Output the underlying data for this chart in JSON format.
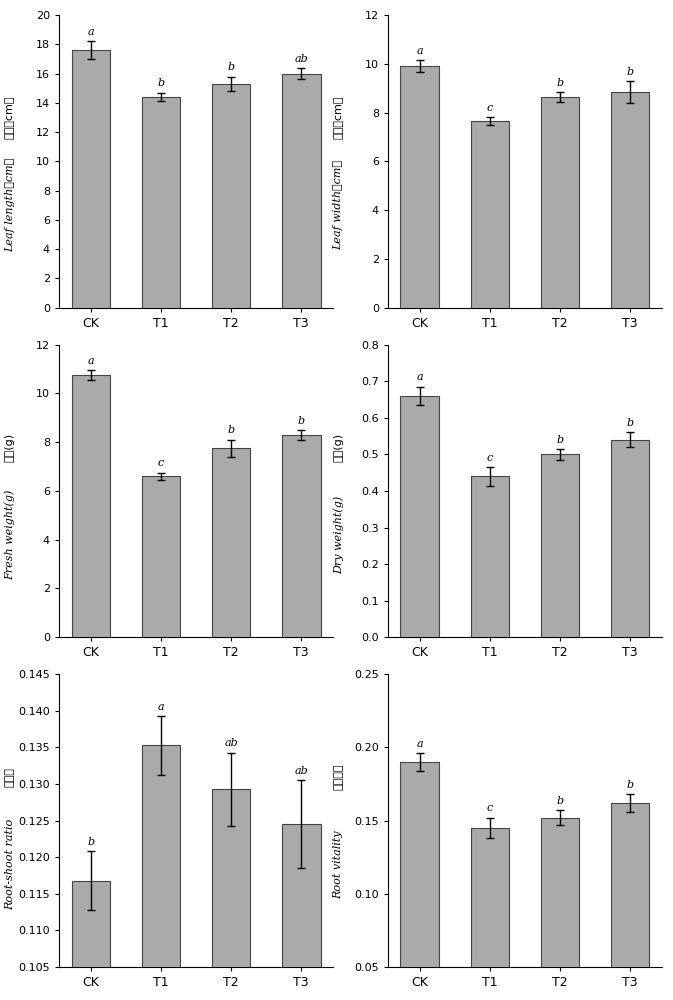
{
  "categories": [
    "CK",
    "T1",
    "T2",
    "T3"
  ],
  "panels": [
    {
      "values": [
        17.6,
        14.4,
        15.3,
        16.0
      ],
      "errors": [
        0.6,
        0.3,
        0.5,
        0.35
      ],
      "letters": [
        "a",
        "b",
        "b",
        "ab"
      ],
      "ylim": [
        0,
        20
      ],
      "yticks": [
        0,
        2,
        4,
        6,
        8,
        10,
        12,
        14,
        16,
        18,
        20
      ],
      "ylabel_cn": "叶长（cm）",
      "ylabel_en": "Leaf length（cm）"
    },
    {
      "values": [
        9.9,
        7.65,
        8.65,
        8.85
      ],
      "errors": [
        0.25,
        0.15,
        0.2,
        0.45
      ],
      "letters": [
        "a",
        "c",
        "b",
        "b"
      ],
      "ylim": [
        0,
        12
      ],
      "yticks": [
        0,
        2,
        4,
        6,
        8,
        10,
        12
      ],
      "ylabel_cn": "叶宽（cm）",
      "ylabel_en": "Leaf width（cm）"
    },
    {
      "values": [
        10.75,
        6.6,
        7.75,
        8.3
      ],
      "errors": [
        0.2,
        0.15,
        0.35,
        0.2
      ],
      "letters": [
        "a",
        "c",
        "b",
        "b"
      ],
      "ylim": [
        0,
        12
      ],
      "yticks": [
        0,
        2,
        4,
        6,
        8,
        10,
        12
      ],
      "ylabel_cn": "鲜重(g)",
      "ylabel_en": "Fresh weight(g)"
    },
    {
      "values": [
        0.66,
        0.44,
        0.5,
        0.54
      ],
      "errors": [
        0.025,
        0.025,
        0.015,
        0.02
      ],
      "letters": [
        "a",
        "c",
        "b",
        "b"
      ],
      "ylim": [
        0,
        0.8
      ],
      "yticks": [
        0,
        0.1,
        0.2,
        0.3,
        0.4,
        0.5,
        0.6,
        0.7,
        0.8
      ],
      "ylabel_cn": "干重(g)",
      "ylabel_en": "Dry weight(g)"
    },
    {
      "values": [
        0.1168,
        0.1353,
        0.1293,
        0.1245
      ],
      "errors": [
        0.004,
        0.004,
        0.005,
        0.006
      ],
      "letters": [
        "b",
        "a",
        "ab",
        "ab"
      ],
      "ylim": [
        0.105,
        0.145
      ],
      "yticks": [
        0.105,
        0.11,
        0.115,
        0.12,
        0.125,
        0.13,
        0.135,
        0.14,
        0.145
      ],
      "ylabel_cn": "根冠比",
      "ylabel_en": "Root-shoot ratio"
    },
    {
      "values": [
        0.19,
        0.145,
        0.152,
        0.162
      ],
      "errors": [
        0.006,
        0.007,
        0.005,
        0.006
      ],
      "letters": [
        "a",
        "c",
        "b",
        "b"
      ],
      "ylim": [
        0.05,
        0.25
      ],
      "yticks": [
        0.05,
        0.1,
        0.15,
        0.2,
        0.25
      ],
      "ylabel_cn": "根系活力",
      "ylabel_en": "Root vitality"
    }
  ],
  "bar_color": "#aaaaaa",
  "bar_edgecolor": "#444444",
  "bar_width": 0.55,
  "capsize": 3,
  "error_color": "black",
  "background_color": "#ffffff"
}
